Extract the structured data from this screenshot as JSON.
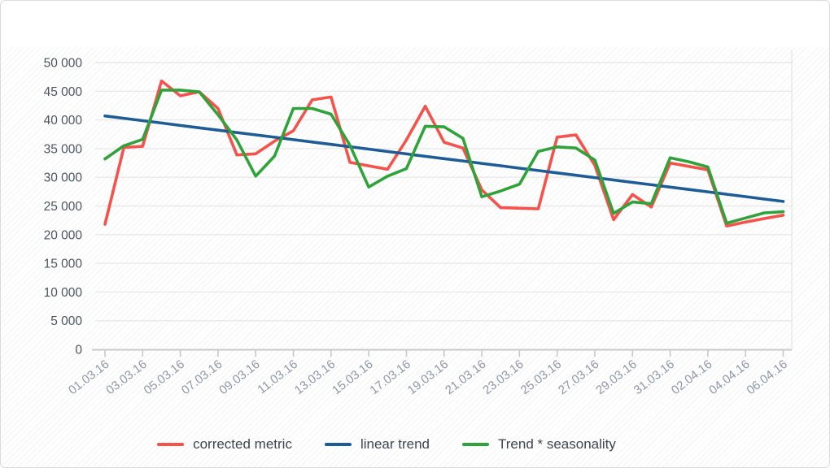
{
  "chart_data": {
    "type": "line",
    "x_labels": [
      "01.03.16",
      "03.03.16",
      "05.03.16",
      "07.03.16",
      "09.03.16",
      "11.03.16",
      "13.03.16",
      "15.03.16",
      "17.03.16",
      "19.03.16",
      "21.03.16",
      "23.03.16",
      "25.03.16",
      "27.03.16",
      "29.03.16",
      "31.03.16",
      "02.04.16",
      "04.04.16",
      "06.04.16"
    ],
    "points_per_label": 2,
    "y_tick_labels": [
      "0",
      "5 000",
      "10 000",
      "15 000",
      "20 000",
      "25 000",
      "30 000",
      "35 000",
      "40 000",
      "45 000",
      "50 000"
    ],
    "ylim": [
      0,
      50000
    ],
    "ytick_step": 5000,
    "grid": "horizontal",
    "legend_position": "bottom-center",
    "series": [
      {
        "name": "corrected metric",
        "color": "#f5524b",
        "values": [
          21800,
          35200,
          35400,
          46800,
          44200,
          44900,
          42000,
          33900,
          34100,
          36300,
          38100,
          43500,
          44000,
          32600,
          32000,
          31400,
          36500,
          42400,
          36100,
          35100,
          27800,
          24700,
          24600,
          24500,
          37000,
          37400,
          32100,
          22600,
          27000,
          24800,
          32500,
          31900,
          31300,
          21500,
          22200,
          22800,
          23400
        ]
      },
      {
        "name": "linear trend",
        "color": "#1e5c96",
        "values": [
          40700,
          40290,
          39870,
          39460,
          39040,
          38630,
          38220,
          37800,
          37390,
          36980,
          36560,
          36150,
          35730,
          35320,
          34910,
          34490,
          34080,
          33660,
          33250,
          32840,
          32420,
          32010,
          31590,
          31180,
          30770,
          30350,
          29940,
          29530,
          29110,
          28700,
          28280,
          27870,
          27460,
          27040,
          26630,
          26210,
          25800
        ]
      },
      {
        "name": "Trend * seasonality",
        "color": "#2fa33a",
        "values": [
          33200,
          35500,
          36600,
          45200,
          45200,
          44900,
          40900,
          36500,
          30200,
          33700,
          42000,
          42000,
          41000,
          35600,
          28300,
          30200,
          31500,
          38900,
          38800,
          36800,
          26600,
          27600,
          28800,
          34500,
          35300,
          35100,
          33000,
          23700,
          25700,
          25400,
          33400,
          32700,
          31800,
          22000,
          22900,
          23800,
          24000
        ]
      }
    ],
    "colors": {
      "grid_line": "#e9e9e9",
      "axis_line": "#c8c8c8",
      "right_border": "#e3e3e3",
      "y_label": "#4d5560",
      "x_label": "#8e97a9",
      "legend_text": "#3e4550"
    }
  }
}
